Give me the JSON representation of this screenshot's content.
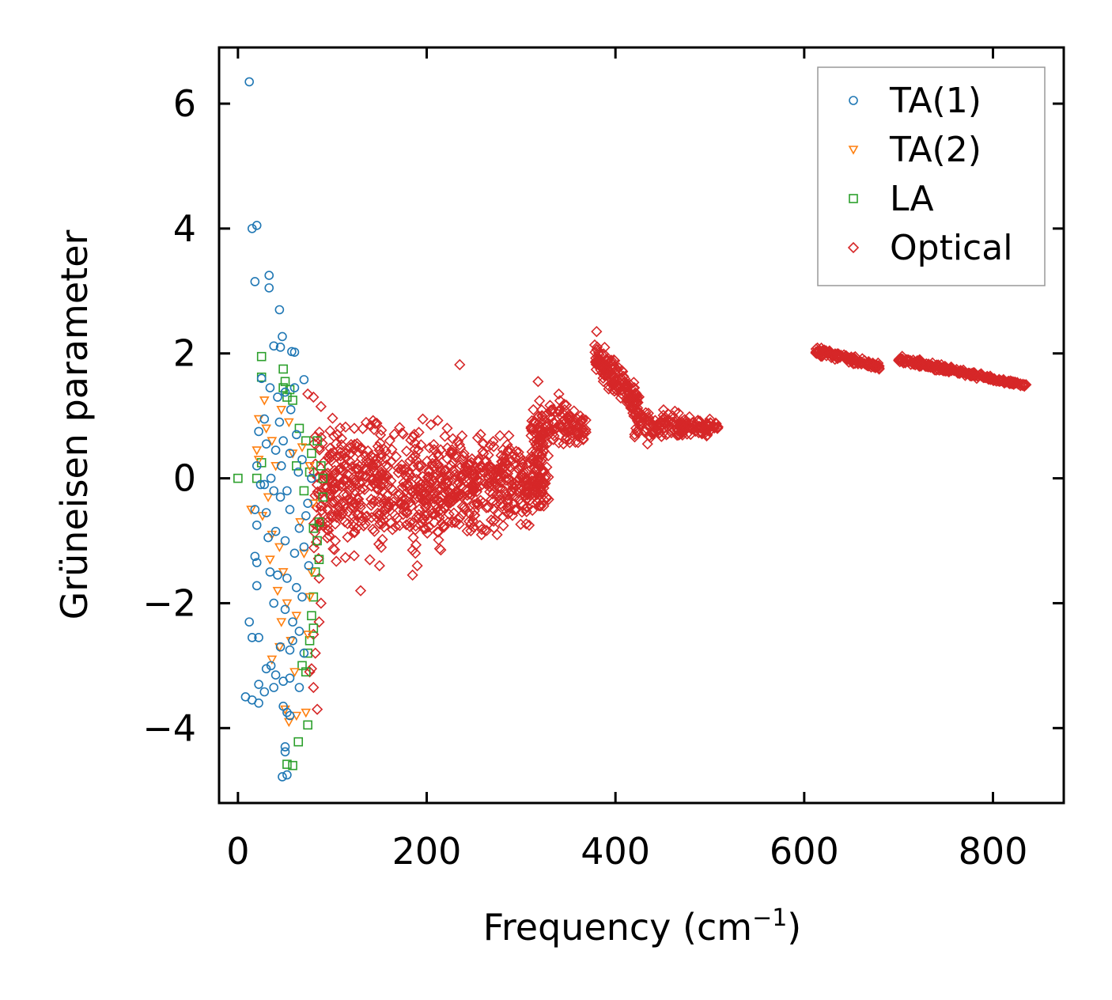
{
  "chart_data": {
    "type": "scatter",
    "xlabel": "Frequency (cm",
    "xlabel_sup": "−1",
    "xlabel_close": ")",
    "ylabel": "Grüneisen parameter",
    "xlim": [
      -20,
      875
    ],
    "ylim": [
      -5.2,
      6.9
    ],
    "xticks": [
      0,
      200,
      400,
      600,
      800
    ],
    "xtick_labels": [
      "0",
      "200",
      "400",
      "600",
      "800"
    ],
    "yticks": [
      -4,
      -2,
      0,
      2,
      4,
      6
    ],
    "ytick_labels": [
      "−4",
      "−2",
      "0",
      "2",
      "4",
      "6"
    ],
    "legend_position": "top-right",
    "series": [
      {
        "name": "TA(1)",
        "marker": "circle",
        "color": "#1f77b4",
        "points": [
          [
            12,
            6.35
          ],
          [
            15,
            4.0
          ],
          [
            20,
            4.05
          ],
          [
            18,
            3.15
          ],
          [
            33,
            3.25
          ],
          [
            33,
            3.05
          ],
          [
            44,
            2.7
          ],
          [
            38,
            2.12
          ],
          [
            45,
            2.1
          ],
          [
            47,
            2.27
          ],
          [
            57,
            2.03
          ],
          [
            60,
            2.02
          ],
          [
            70,
            1.58
          ],
          [
            60,
            1.45
          ],
          [
            50,
            1.38
          ],
          [
            42,
            1.3
          ],
          [
            34,
            1.45
          ],
          [
            25,
            1.6
          ],
          [
            28,
            0.95
          ],
          [
            22,
            0.75
          ],
          [
            20,
            0.2
          ],
          [
            30,
            0.55
          ],
          [
            40,
            0.45
          ],
          [
            48,
            0.6
          ],
          [
            55,
            0.4
          ],
          [
            62,
            0.7
          ],
          [
            68,
            0.3
          ],
          [
            28,
            -0.1
          ],
          [
            24,
            -0.1
          ],
          [
            38,
            -0.2
          ],
          [
            18,
            -0.5
          ],
          [
            30,
            -0.55
          ],
          [
            20,
            -0.75
          ],
          [
            32,
            -0.95
          ],
          [
            40,
            -0.85
          ],
          [
            50,
            -1.0
          ],
          [
            60,
            -1.2
          ],
          [
            70,
            -1.1
          ],
          [
            18,
            -1.25
          ],
          [
            20,
            -1.35
          ],
          [
            34,
            -1.5
          ],
          [
            42,
            -1.55
          ],
          [
            52,
            -1.6
          ],
          [
            62,
            -1.75
          ],
          [
            20,
            -1.72
          ],
          [
            38,
            -2.0
          ],
          [
            50,
            -2.1
          ],
          [
            58,
            -2.3
          ],
          [
            65,
            -2.45
          ],
          [
            12,
            -2.3
          ],
          [
            15,
            -2.55
          ],
          [
            22,
            -2.55
          ],
          [
            45,
            -2.7
          ],
          [
            55,
            -2.75
          ],
          [
            70,
            -2.8
          ],
          [
            30,
            -3.05
          ],
          [
            35,
            -3.0
          ],
          [
            40,
            -3.15
          ],
          [
            48,
            -3.25
          ],
          [
            55,
            -3.2
          ],
          [
            65,
            -3.35
          ],
          [
            22,
            -3.3
          ],
          [
            28,
            -3.42
          ],
          [
            38,
            -3.35
          ],
          [
            8,
            -3.5
          ],
          [
            15,
            -3.55
          ],
          [
            22,
            -3.6
          ],
          [
            48,
            -3.65
          ],
          [
            52,
            -3.75
          ],
          [
            55,
            -3.8
          ],
          [
            50,
            -4.3
          ],
          [
            50,
            -4.38
          ],
          [
            47,
            -4.78
          ],
          [
            52,
            -4.75
          ],
          [
            35,
            0.0
          ],
          [
            45,
            -0.3
          ],
          [
            55,
            -0.5
          ],
          [
            65,
            -0.8
          ],
          [
            72,
            -0.6
          ],
          [
            75,
            -1.4
          ],
          [
            68,
            -1.9
          ],
          [
            58,
            -2.6
          ],
          [
            44,
            0.9
          ],
          [
            56,
            1.1
          ],
          [
            64,
            0.1
          ],
          [
            78,
            0.0
          ],
          [
            74,
            -0.4
          ],
          [
            52,
            -0.2
          ],
          [
            46,
            0.2
          ]
        ]
      },
      {
        "name": "TA(2)",
        "marker": "triangle",
        "color": "#ff7f0e",
        "points": [
          [
            14,
            -0.5
          ],
          [
            22,
            0.3
          ],
          [
            28,
            1.25
          ],
          [
            22,
            0.95
          ],
          [
            30,
            0.8
          ],
          [
            20,
            0.45
          ],
          [
            36,
            0.6
          ],
          [
            40,
            0.2
          ],
          [
            32,
            -0.3
          ],
          [
            26,
            -0.6
          ],
          [
            36,
            -0.9
          ],
          [
            44,
            -1.1
          ],
          [
            34,
            -1.3
          ],
          [
            48,
            -1.5
          ],
          [
            42,
            -1.8
          ],
          [
            52,
            -2.0
          ],
          [
            46,
            -2.3
          ],
          [
            56,
            -2.6
          ],
          [
            44,
            -2.7
          ],
          [
            36,
            -2.9
          ],
          [
            50,
            -3.7
          ],
          [
            54,
            -3.9
          ],
          [
            72,
            -3.75
          ],
          [
            62,
            -3.8
          ],
          [
            58,
            0.4
          ],
          [
            66,
            -0.7
          ],
          [
            70,
            -1.2
          ],
          [
            76,
            -1.9
          ],
          [
            62,
            -2.2
          ],
          [
            54,
            0.9
          ],
          [
            46,
            1.1
          ],
          [
            68,
            0.5
          ],
          [
            76,
            0.2
          ],
          [
            80,
            -0.4
          ],
          [
            78,
            -1.5
          ],
          [
            74,
            -2.5
          ],
          [
            60,
            -3.1
          ]
        ]
      },
      {
        "name": "LA",
        "marker": "square",
        "color": "#2ca02c",
        "points": [
          [
            25,
            1.95
          ],
          [
            25,
            1.62
          ],
          [
            48,
            1.75
          ],
          [
            50,
            1.55
          ],
          [
            48,
            1.45
          ],
          [
            55,
            1.42
          ],
          [
            52,
            1.3
          ],
          [
            58,
            1.25
          ],
          [
            65,
            0.8
          ],
          [
            72,
            0.6
          ],
          [
            78,
            0.4
          ],
          [
            84,
            0.6
          ],
          [
            88,
            0.2
          ],
          [
            90,
            0.0
          ],
          [
            90,
            -0.3
          ],
          [
            86,
            -0.7
          ],
          [
            84,
            -1.0
          ],
          [
            82,
            -1.5
          ],
          [
            80,
            -1.9
          ],
          [
            78,
            -2.2
          ],
          [
            76,
            -2.6
          ],
          [
            74,
            -2.8
          ],
          [
            72,
            -3.1
          ],
          [
            74,
            -3.95
          ],
          [
            64,
            -4.22
          ],
          [
            52,
            -4.58
          ],
          [
            58,
            -4.6
          ],
          [
            25,
            0.25
          ],
          [
            20,
            0.0
          ],
          [
            0,
            0.0
          ],
          [
            62,
            0.2
          ],
          [
            70,
            -0.2
          ],
          [
            76,
            0.1
          ],
          [
            80,
            -0.8
          ],
          [
            86,
            -1.3
          ],
          [
            80,
            -2.4
          ],
          [
            68,
            -3.0
          ]
        ]
      },
      {
        "name": "Optical",
        "marker": "diamond",
        "color": "#d62728",
        "clusters": [
          {
            "x": [
              80,
              330
            ],
            "y_top": [
              1.4,
              0.8
            ],
            "y_bottom": [
              -1.8,
              -0.9
            ],
            "count": 900
          },
          {
            "x": [
              310,
              370
            ],
            "y_top": [
              1.45,
              1.2
            ],
            "y_bottom": [
              0.2,
              0.45
            ],
            "count": 140
          },
          {
            "x": [
              378,
              425
            ],
            "y_top": [
              2.4,
              1.6
            ],
            "y_bottom": [
              1.5,
              0.8
            ],
            "count": 160
          },
          {
            "x": [
              420,
              510
            ],
            "y_top": [
              1.3,
              0.95
            ],
            "y_bottom": [
              0.4,
              0.7
            ],
            "count": 180
          },
          {
            "x": [
              612,
              680
            ],
            "y_top": [
              2.15,
              1.85
            ],
            "y_bottom": [
              1.95,
              1.72
            ],
            "count": 130
          },
          {
            "x": [
              700,
              835
            ],
            "y_top": [
              2.0,
              1.52
            ],
            "y_bottom": [
              1.82,
              1.45
            ],
            "count": 220
          }
        ],
        "points": [
          [
            74,
            1.35
          ],
          [
            80,
            1.3
          ],
          [
            88,
            1.15
          ],
          [
            76,
            -3.1
          ],
          [
            80,
            -3.35
          ],
          [
            84,
            -3.7
          ],
          [
            82,
            -2.8
          ],
          [
            78,
            -3.05
          ],
          [
            80,
            -2.5
          ],
          [
            86,
            -2.3
          ],
          [
            88,
            -2.0
          ],
          [
            86,
            -1.6
          ],
          [
            130,
            -1.8
          ],
          [
            150,
            -1.4
          ],
          [
            185,
            -1.55
          ],
          [
            190,
            -1.4
          ],
          [
            188,
            -1.2
          ],
          [
            185,
            -1.15
          ],
          [
            270,
            -0.25
          ],
          [
            300,
            -0.4
          ],
          [
            250,
            -0.15
          ],
          [
            215,
            -0.5
          ],
          [
            235,
            1.82
          ],
          [
            318,
            1.55
          ],
          [
            340,
            1.35
          ],
          [
            357,
            0.9
          ],
          [
            380,
            2.35
          ],
          [
            434,
            0.55
          ],
          [
            508,
            0.8
          ],
          [
            835,
            1.5
          ]
        ]
      }
    ]
  }
}
